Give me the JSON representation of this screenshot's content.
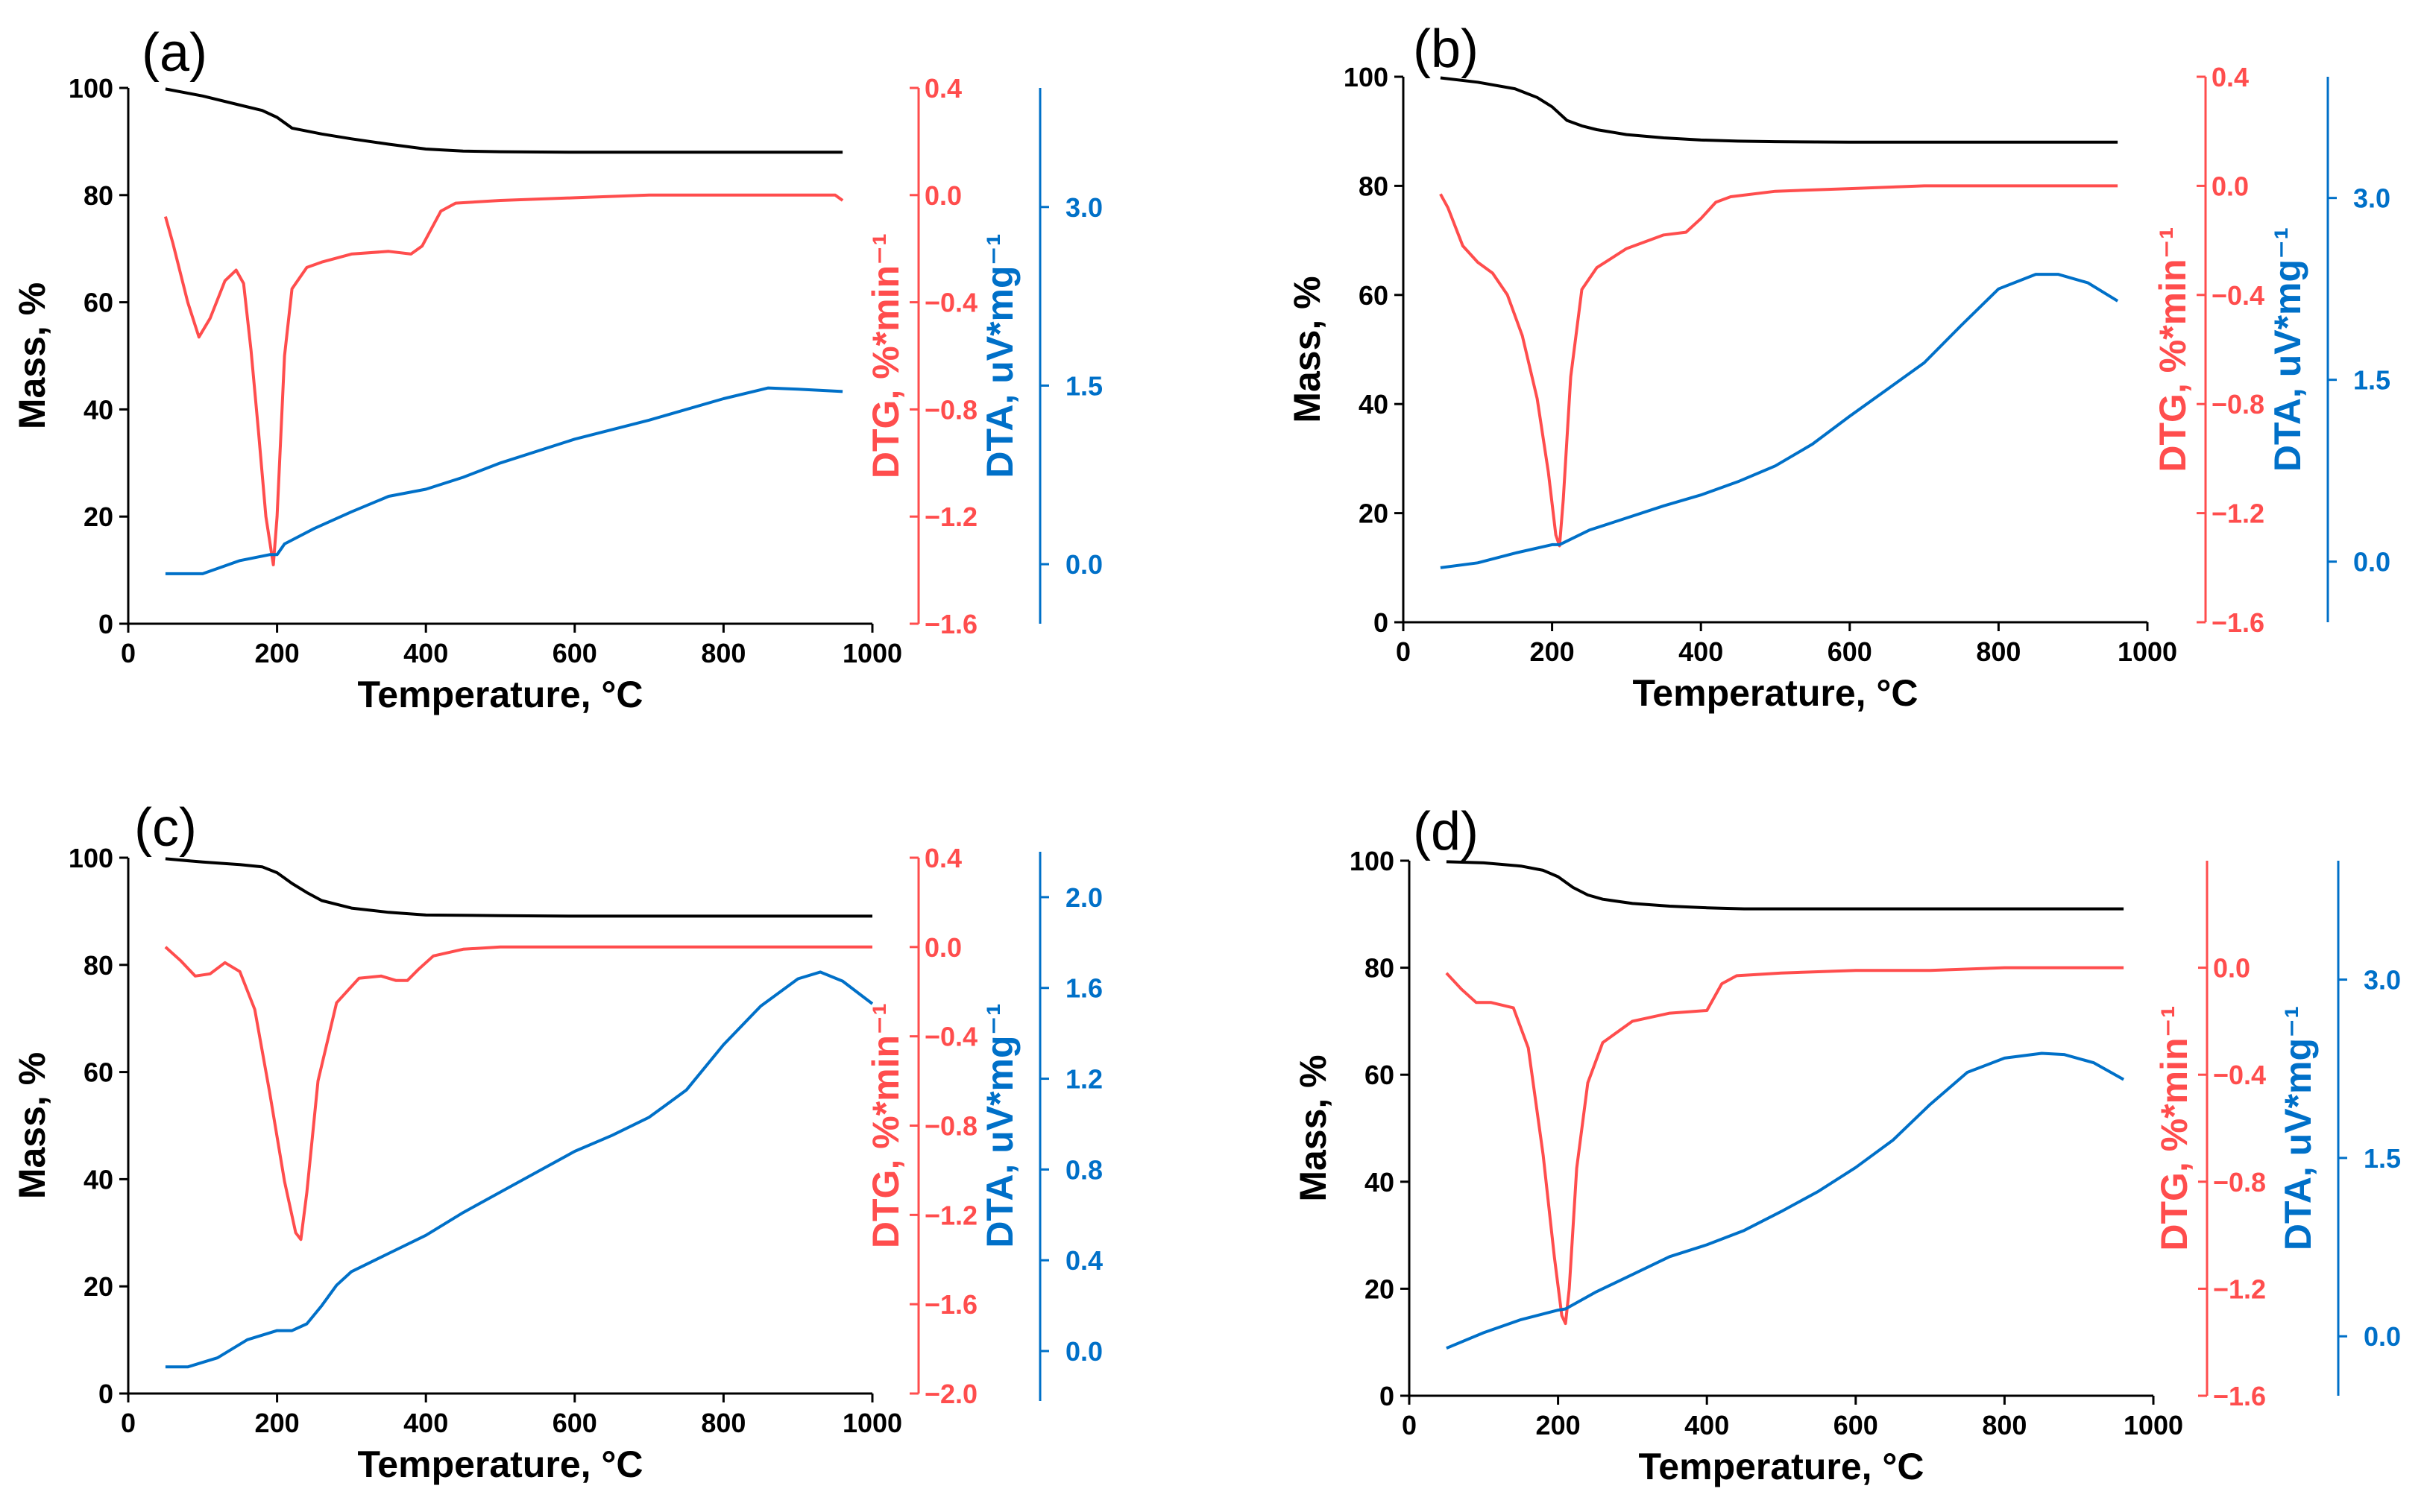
{
  "colors": {
    "mass": "#000000",
    "dtg": "#ff4d4d",
    "dta": "#0070c8"
  },
  "chart_data": [
    {
      "panel": "(a)",
      "type": "line",
      "xlabel": "Temperature, °C",
      "x_ticks": [
        "0",
        "200",
        "400",
        "600",
        "800",
        "1000"
      ],
      "xlim": [
        0,
        1000
      ],
      "axes": {
        "mass": {
          "label": "Mass, %",
          "ylim": [
            0,
            100
          ],
          "ticks": [
            "0",
            "20",
            "40",
            "60",
            "80",
            "100"
          ]
        },
        "dtg": {
          "label": "DTG, %*min⁻¹",
          "ylim": [
            -1.6,
            0.4
          ],
          "ticks": [
            "-1.6",
            "-1.2",
            "-0.8",
            "-0.4",
            "0.0",
            "0.4"
          ]
        },
        "dta": {
          "label": "DTA, uV*mg⁻¹",
          "ylim": [
            -0.5,
            4.0
          ],
          "ticks": [
            "0.0",
            "1.5",
            "3.0"
          ]
        }
      },
      "series": [
        {
          "name": "Mass",
          "axis": "mass",
          "x": [
            50,
            100,
            150,
            180,
            200,
            220,
            260,
            300,
            350,
            400,
            450,
            500,
            600,
            700,
            800,
            900,
            960
          ],
          "y": [
            99.8,
            98.5,
            96.8,
            95.8,
            94.5,
            92.5,
            91.4,
            90.5,
            89.5,
            88.6,
            88.2,
            88.1,
            88.0,
            88.0,
            88.0,
            88.0,
            88.0
          ]
        },
        {
          "name": "DTG",
          "axis": "dtg",
          "x": [
            50,
            60,
            80,
            95,
            110,
            130,
            145,
            155,
            165,
            175,
            185,
            195,
            200,
            210,
            220,
            240,
            260,
            300,
            350,
            380,
            395,
            420,
            440,
            500,
            600,
            700,
            800,
            900,
            950,
            960
          ],
          "y": [
            -0.08,
            -0.18,
            -0.4,
            -0.53,
            -0.46,
            -0.32,
            -0.28,
            -0.33,
            -0.58,
            -0.88,
            -1.2,
            -1.38,
            -1.2,
            -0.6,
            -0.35,
            -0.27,
            -0.25,
            -0.22,
            -0.21,
            -0.22,
            -0.19,
            -0.06,
            -0.03,
            -0.02,
            -0.01,
            0.0,
            0.0,
            0.0,
            0.0,
            -0.02
          ]
        },
        {
          "name": "DTA",
          "axis": "dta",
          "x": [
            50,
            100,
            150,
            190,
            200,
            210,
            250,
            300,
            350,
            400,
            450,
            500,
            600,
            700,
            800,
            860,
            900,
            960
          ],
          "y": [
            -0.08,
            -0.08,
            0.03,
            0.08,
            0.08,
            0.17,
            0.3,
            0.44,
            0.57,
            0.63,
            0.73,
            0.85,
            1.05,
            1.21,
            1.39,
            1.48,
            1.47,
            1.45
          ]
        }
      ]
    },
    {
      "panel": "(b)",
      "type": "line",
      "xlabel": "Temperature, °C",
      "x_ticks": [
        "0",
        "200",
        "400",
        "600",
        "800",
        "1000"
      ],
      "xlim": [
        0,
        1000
      ],
      "axes": {
        "mass": {
          "label": "Mass, %",
          "ylim": [
            0,
            100
          ],
          "ticks": [
            "0",
            "20",
            "40",
            "60",
            "80",
            "100"
          ]
        },
        "dtg": {
          "label": "DTG, %*min⁻¹",
          "ylim": [
            -1.6,
            0.4
          ],
          "ticks": [
            "-1.6",
            "-1.2",
            "-0.8",
            "-0.4",
            "0.0",
            "0.4"
          ]
        },
        "dta": {
          "label": "DTA, uV*mg⁻¹",
          "ylim": [
            -0.5,
            4.0
          ],
          "ticks": [
            "0.0",
            "1.5",
            "3.0"
          ]
        }
      },
      "series": [
        {
          "name": "Mass",
          "axis": "mass",
          "x": [
            50,
            100,
            150,
            180,
            200,
            220,
            240,
            260,
            300,
            350,
            400,
            450,
            500,
            600,
            700,
            800,
            900,
            960
          ],
          "y": [
            99.8,
            99.0,
            97.8,
            96.2,
            94.5,
            92.0,
            91.0,
            90.3,
            89.4,
            88.8,
            88.4,
            88.2,
            88.1,
            88.0,
            88.0,
            88.0,
            88.0,
            88.0
          ]
        },
        {
          "name": "DTG",
          "axis": "dtg",
          "x": [
            50,
            60,
            80,
            100,
            120,
            140,
            160,
            180,
            195,
            205,
            210,
            215,
            225,
            240,
            260,
            300,
            350,
            380,
            400,
            420,
            440,
            500,
            600,
            700,
            800,
            900,
            960
          ],
          "y": [
            -0.03,
            -0.08,
            -0.22,
            -0.28,
            -0.32,
            -0.4,
            -0.55,
            -0.78,
            -1.05,
            -1.28,
            -1.32,
            -1.15,
            -0.7,
            -0.38,
            -0.3,
            -0.23,
            -0.18,
            -0.17,
            -0.12,
            -0.06,
            -0.04,
            -0.02,
            -0.01,
            0.0,
            0.0,
            0.0,
            0.0
          ]
        },
        {
          "name": "DTA",
          "axis": "dta",
          "x": [
            50,
            100,
            150,
            200,
            210,
            250,
            300,
            350,
            400,
            450,
            500,
            550,
            600,
            650,
            700,
            750,
            800,
            850,
            880,
            920,
            960
          ],
          "y": [
            -0.05,
            -0.01,
            0.07,
            0.14,
            0.14,
            0.26,
            0.36,
            0.46,
            0.55,
            0.66,
            0.79,
            0.97,
            1.2,
            1.42,
            1.64,
            1.95,
            2.25,
            2.37,
            2.37,
            2.3,
            2.15
          ]
        }
      ]
    },
    {
      "panel": "(c)",
      "type": "line",
      "xlabel": "Temperature, °C",
      "x_ticks": [
        "0",
        "200",
        "400",
        "600",
        "800",
        "1000"
      ],
      "xlim": [
        0,
        1000
      ],
      "axes": {
        "mass": {
          "label": "Mass, %",
          "ylim": [
            0,
            100
          ],
          "ticks": [
            "0",
            "20",
            "40",
            "60",
            "80",
            "100"
          ]
        },
        "dtg": {
          "label": "DTG, %*min⁻¹",
          "ylim": [
            -2.0,
            0.4
          ],
          "ticks": [
            "-2.0",
            "-1.6",
            "-1.2",
            "-0.8",
            "-0.4",
            "0.0",
            "0.4"
          ]
        },
        "dta": {
          "label": "DTA, uV*mg⁻¹",
          "ylim": [
            -0.22,
            2.2
          ],
          "ticks": [
            "0.0",
            "0.4",
            "0.8",
            "1.2",
            "1.6",
            "2.0"
          ]
        }
      },
      "series": [
        {
          "name": "Mass",
          "axis": "mass",
          "x": [
            50,
            100,
            150,
            180,
            200,
            220,
            240,
            260,
            300,
            350,
            400,
            500,
            600,
            700,
            800,
            900,
            1000
          ],
          "y": [
            99.8,
            99.2,
            98.7,
            98.3,
            97.2,
            95.2,
            93.5,
            92.0,
            90.6,
            89.8,
            89.3,
            89.2,
            89.1,
            89.1,
            89.1,
            89.1,
            89.1
          ],
          "x_note": ""
        },
        {
          "name": "DTG",
          "axis": "dtg",
          "x": [
            50,
            70,
            90,
            110,
            130,
            150,
            170,
            190,
            210,
            225,
            232,
            240,
            255,
            280,
            310,
            340,
            360,
            375,
            390,
            410,
            450,
            500,
            600,
            700,
            800,
            900,
            1000
          ],
          "y": [
            0.0,
            -0.06,
            -0.13,
            -0.12,
            -0.07,
            -0.11,
            -0.28,
            -0.65,
            -1.05,
            -1.28,
            -1.31,
            -1.1,
            -0.6,
            -0.25,
            -0.14,
            -0.13,
            -0.15,
            -0.15,
            -0.1,
            -0.04,
            -0.01,
            0.0,
            0.0,
            0.0,
            0.0,
            0.0,
            0.0
          ]
        },
        {
          "name": "DTA",
          "axis": "dta",
          "x": [
            50,
            80,
            120,
            160,
            200,
            220,
            240,
            260,
            280,
            300,
            350,
            400,
            450,
            500,
            550,
            600,
            650,
            700,
            750,
            800,
            850,
            900,
            930,
            960,
            1000
          ],
          "y": [
            -0.07,
            -0.07,
            -0.03,
            0.05,
            0.09,
            0.09,
            0.12,
            0.2,
            0.29,
            0.35,
            0.43,
            0.51,
            0.61,
            0.7,
            0.79,
            0.88,
            0.95,
            1.03,
            1.15,
            1.35,
            1.52,
            1.64,
            1.67,
            1.63,
            1.53
          ]
        }
      ]
    },
    {
      "panel": "(d)",
      "type": "line",
      "xlabel": "Temperature, °C",
      "x_ticks": [
        "0",
        "200",
        "400",
        "600",
        "800",
        "1000"
      ],
      "xlim": [
        0,
        1000
      ],
      "axes": {
        "mass": {
          "label": "Mass, %",
          "ylim": [
            0,
            100
          ],
          "ticks": [
            "0",
            "20",
            "40",
            "60",
            "80",
            "100"
          ]
        },
        "dtg": {
          "label": "DTG, %*min⁻¹",
          "ylim": [
            -1.6,
            0.4
          ],
          "ticks": [
            "-1.6",
            "-1.2",
            "-0.8",
            "-0.4",
            "0.0"
          ]
        },
        "dta": {
          "label": "DTA, uV*mg⁻¹",
          "ylim": [
            -0.5,
            4.0
          ],
          "ticks": [
            "0.0",
            "1.5",
            "3.0"
          ]
        }
      },
      "series": [
        {
          "name": "Mass",
          "axis": "mass",
          "x": [
            50,
            100,
            150,
            180,
            200,
            220,
            240,
            260,
            300,
            350,
            400,
            450,
            500,
            600,
            700,
            800,
            900,
            960
          ],
          "y": [
            99.8,
            99.6,
            99.0,
            98.2,
            97.0,
            95.0,
            93.6,
            92.8,
            92.0,
            91.5,
            91.2,
            91.0,
            91.0,
            91.0,
            91.0,
            91.0,
            91.0,
            91.0
          ]
        },
        {
          "name": "DTG",
          "axis": "dtg",
          "x": [
            50,
            70,
            90,
            110,
            140,
            160,
            180,
            195,
            205,
            210,
            215,
            225,
            240,
            260,
            300,
            350,
            400,
            420,
            440,
            500,
            600,
            700,
            800,
            900,
            960
          ],
          "y": [
            -0.02,
            -0.08,
            -0.13,
            -0.13,
            -0.15,
            -0.3,
            -0.7,
            -1.08,
            -1.3,
            -1.33,
            -1.2,
            -0.75,
            -0.43,
            -0.28,
            -0.2,
            -0.17,
            -0.16,
            -0.06,
            -0.03,
            -0.02,
            -0.01,
            -0.01,
            0.0,
            0.0,
            0.0
          ]
        },
        {
          "name": "DTA",
          "axis": "dta",
          "x": [
            50,
            100,
            150,
            200,
            210,
            250,
            300,
            350,
            400,
            450,
            500,
            550,
            600,
            650,
            700,
            750,
            800,
            850,
            880,
            920,
            960
          ],
          "y": [
            -0.1,
            0.03,
            0.14,
            0.22,
            0.23,
            0.37,
            0.52,
            0.67,
            0.77,
            0.89,
            1.05,
            1.22,
            1.42,
            1.65,
            1.95,
            2.22,
            2.34,
            2.38,
            2.37,
            2.3,
            2.16
          ]
        }
      ]
    }
  ]
}
